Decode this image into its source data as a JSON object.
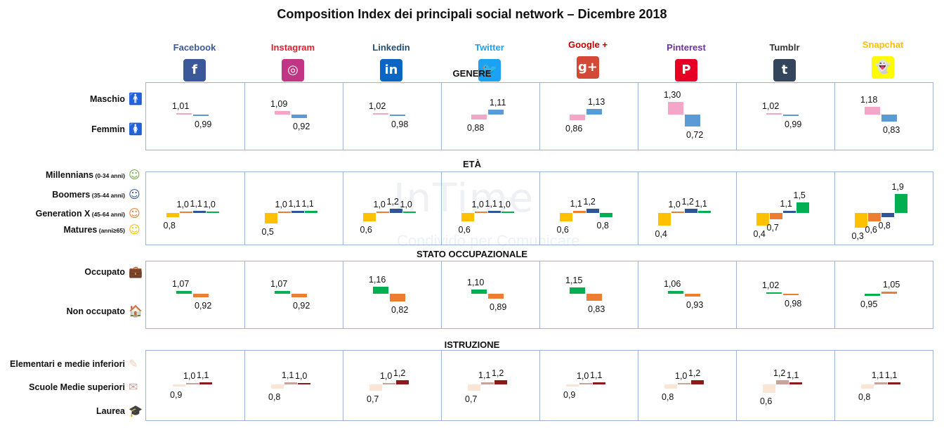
{
  "title": "Composition Index dei principali social network – Dicembre 2018",
  "watermark": {
    "main": "InTime",
    "sub": "Condivido per Comunicare"
  },
  "networks": [
    {
      "name": "Facebook",
      "color": "#3b5998",
      "logo_bg": "#3b5998",
      "glyph": "f"
    },
    {
      "name": "Instagram",
      "color": "#e0202a",
      "logo_bg": "#c13584",
      "glyph": "◎"
    },
    {
      "name": "Linkedin",
      "color": "#1f4e79",
      "logo_bg": "#0a66c2",
      "glyph": "in"
    },
    {
      "name": "Twitter",
      "color": "#1da1f2",
      "logo_bg": "#1da1f2",
      "glyph": "🐦"
    },
    {
      "name": "Google +",
      "color": "#c00000",
      "logo_bg": "#d34836",
      "glyph": "g+"
    },
    {
      "name": "Pinterest",
      "color": "#7030a0",
      "logo_bg": "#e60023",
      "glyph": "P"
    },
    {
      "name": "Tumblr",
      "color": "#333333",
      "logo_bg": "#35465c",
      "glyph": "t"
    },
    {
      "name": "Snapchat",
      "color": "#ffc000",
      "logo_bg": "#fffc00",
      "glyph": "👻"
    }
  ],
  "chart_data": [
    {
      "type": "bar",
      "section": "GENERE",
      "rows": [
        "Maschio",
        "Femmin"
      ],
      "series": [
        {
          "name": "Maschio",
          "color": "#f4a6c8",
          "values": [
            "1,01",
            "1,09",
            "1,02",
            "0,88",
            "0,86",
            "1,30",
            "1,02",
            "1,18"
          ]
        },
        {
          "name": "Femmin",
          "color": "#5b9bd5",
          "values": [
            "0,99",
            "0,92",
            "0,98",
            "1,11",
            "1,13",
            "0,72",
            "0,99",
            "0,83"
          ]
        }
      ]
    },
    {
      "type": "bar",
      "section": "ETÀ",
      "rows": [
        "Millennians",
        "Boomers",
        "Generation X",
        "Matures"
      ],
      "row_notes": [
        "(0-34 anni)",
        "(35-44 anni)",
        "(45-64 anni)",
        "(anni≥65)"
      ],
      "series": [
        {
          "name": "Millennians",
          "color": "#ffc000",
          "values": [
            "0,8",
            "0,5",
            "0,6",
            "0,6",
            "0,6",
            "0,4",
            "0,4",
            "0,3"
          ]
        },
        {
          "name": "Boomers",
          "color": "#ed7d31",
          "values": [
            "1,0",
            "1,0",
            "1,0",
            "1,0",
            "1,1",
            "1,0",
            "0,7",
            "0,6"
          ]
        },
        {
          "name": "Generation X",
          "color": "#2f5597",
          "values": [
            "1,1",
            "1,1",
            "1,2",
            "1,1",
            "1,2",
            "1,2",
            "1,1",
            "0,8"
          ]
        },
        {
          "name": "Matures",
          "color": "#00b050",
          "values": [
            "1,0",
            "1,1",
            "1,0",
            "1,0",
            "0,8",
            "1,1",
            "1,5",
            "1,9"
          ]
        }
      ]
    },
    {
      "type": "bar",
      "section": "STATO  OCCUPAZIONALE",
      "rows": [
        "Occupato",
        "Non occupato"
      ],
      "series": [
        {
          "name": "Occupato",
          "color": "#00b050",
          "values": [
            "1,07",
            "1,07",
            "1,16",
            "1,10",
            "1,15",
            "1,06",
            "1,02",
            "0,95"
          ]
        },
        {
          "name": "Non occupato",
          "color": "#ed7d31",
          "values": [
            "0,92",
            "0,92",
            "0,82",
            "0,89",
            "0,83",
            "0,93",
            "0,98",
            "1,05"
          ]
        }
      ]
    },
    {
      "type": "bar",
      "section": "ISTRUZIONE",
      "rows": [
        "Elementari e medie inferiori",
        "Scuole Medie superiori",
        "Laurea"
      ],
      "series": [
        {
          "name": "Elementari e medie inferiori",
          "color": "#fbe5d6",
          "values": [
            "0,9",
            "0,8",
            "0,7",
            "0,7",
            "0,9",
            "0,8",
            "0,6",
            "0,8"
          ]
        },
        {
          "name": "Scuole Medie superiori",
          "color": "#c9a39a",
          "values": [
            "1,0",
            "1,1",
            "1,0",
            "1,1",
            "1,0",
            "1,0",
            "1,2",
            "1,1"
          ]
        },
        {
          "name": "Laurea",
          "color": "#8b1a1a",
          "values": [
            "1,1",
            "1,0",
            "1,2",
            "1,2",
            "1,1",
            "1,2",
            "1,1",
            "1,1"
          ]
        }
      ]
    }
  ]
}
